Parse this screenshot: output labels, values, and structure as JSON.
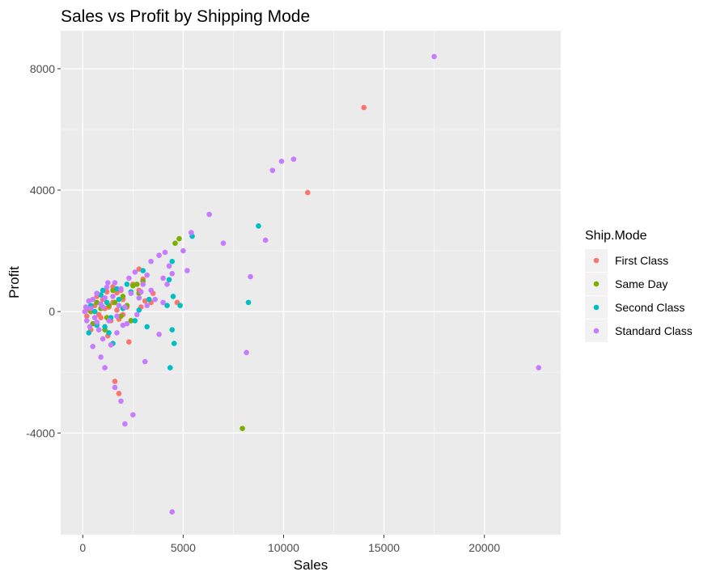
{
  "chart_data": {
    "type": "scatter",
    "title": "Sales vs Profit by Shipping Mode",
    "xlabel": "Sales",
    "ylabel": "Profit",
    "xlim": [
      -1100,
      23800
    ],
    "ylim": [
      -7350,
      9250
    ],
    "x_ticks": [
      0,
      5000,
      10000,
      15000,
      20000
    ],
    "y_ticks": [
      -4000,
      0,
      4000,
      8000
    ],
    "x_tick_labels": [
      "0",
      "5000",
      "10000",
      "15000",
      "20000"
    ],
    "y_tick_labels": [
      "-4000",
      "0",
      "4000",
      "8000"
    ],
    "grid": true,
    "background": "#ebebeb",
    "grid_color": "#ffffff",
    "legend": {
      "title": "Ship.Mode",
      "position": "right",
      "items": [
        {
          "label": "First Class",
          "color": "#F8766D"
        },
        {
          "label": "Same Day",
          "color": "#7CAE00"
        },
        {
          "label": "Second Class",
          "color": "#00BFC4"
        },
        {
          "label": "Standard Class",
          "color": "#C77CFF"
        }
      ]
    },
    "series": [
      {
        "name": "First Class",
        "color": "#F8766D",
        "points": [
          [
            14000,
            6720
          ],
          [
            11200,
            3920
          ],
          [
            3000,
            1070
          ],
          [
            2800,
            1400
          ],
          [
            3500,
            600
          ],
          [
            3400,
            300
          ],
          [
            4700,
            300
          ],
          [
            1700,
            620
          ],
          [
            1200,
            650
          ],
          [
            2000,
            400
          ],
          [
            2800,
            700
          ],
          [
            2500,
            900
          ],
          [
            1500,
            300
          ],
          [
            1300,
            150
          ],
          [
            1700,
            50
          ],
          [
            900,
            -200
          ],
          [
            700,
            -400
          ],
          [
            1800,
            -250
          ],
          [
            2300,
            -1000
          ],
          [
            1600,
            -2300
          ],
          [
            1800,
            -2700
          ],
          [
            400,
            -600
          ],
          [
            1100,
            100
          ],
          [
            600,
            200
          ],
          [
            2200,
            150
          ],
          [
            3100,
            350
          ],
          [
            800,
            -100
          ],
          [
            1400,
            -300
          ],
          [
            300,
            50
          ],
          [
            1000,
            400
          ],
          [
            1900,
            700
          ],
          [
            2900,
            150
          ],
          [
            2000,
            -100
          ],
          [
            700,
            500
          ],
          [
            1500,
            820
          ],
          [
            2400,
            -300
          ],
          [
            200,
            -150
          ],
          [
            1250,
            -800
          ]
        ]
      },
      {
        "name": "Same Day",
        "color": "#7CAE00",
        "points": [
          [
            4600,
            2250
          ],
          [
            4800,
            2400
          ],
          [
            7950,
            -3850
          ],
          [
            2700,
            900
          ],
          [
            2500,
            850
          ],
          [
            3000,
            1000
          ],
          [
            2400,
            -300
          ],
          [
            1600,
            300
          ],
          [
            1200,
            -200
          ],
          [
            900,
            100
          ],
          [
            2000,
            500
          ],
          [
            500,
            -400
          ],
          [
            1500,
            700
          ],
          [
            2200,
            200
          ],
          [
            1100,
            -600
          ],
          [
            700,
            300
          ],
          [
            1900,
            -150
          ],
          [
            2800,
            600
          ],
          [
            1300,
            200
          ],
          [
            400,
            0
          ]
        ]
      },
      {
        "name": "Second Class",
        "color": "#00BFC4",
        "points": [
          [
            8750,
            2820
          ],
          [
            5450,
            2480
          ],
          [
            8250,
            300
          ],
          [
            4450,
            1650
          ],
          [
            4300,
            1050
          ],
          [
            4350,
            -1850
          ],
          [
            4450,
            -600
          ],
          [
            4550,
            -1050
          ],
          [
            4200,
            200
          ],
          [
            4850,
            200
          ],
          [
            4500,
            500
          ],
          [
            3200,
            -500
          ],
          [
            3000,
            1350
          ],
          [
            2200,
            900
          ],
          [
            1500,
            -1050
          ],
          [
            1300,
            -700
          ],
          [
            2600,
            -300
          ],
          [
            1800,
            400
          ],
          [
            1000,
            700
          ],
          [
            700,
            -450
          ],
          [
            400,
            200
          ],
          [
            300,
            -700
          ],
          [
            2000,
            100
          ],
          [
            1700,
            750
          ],
          [
            1200,
            300
          ],
          [
            3300,
            400
          ],
          [
            2800,
            50
          ],
          [
            600,
            0
          ],
          [
            1400,
            -200
          ],
          [
            2400,
            650
          ],
          [
            900,
            550
          ],
          [
            1100,
            -500
          ]
        ]
      },
      {
        "name": "Standard Class",
        "color": "#C77CFF",
        "points": [
          [
            17500,
            8400
          ],
          [
            10500,
            5020
          ],
          [
            9900,
            4950
          ],
          [
            9450,
            4650
          ],
          [
            6300,
            3200
          ],
          [
            7000,
            2250
          ],
          [
            9100,
            2350
          ],
          [
            5400,
            2600
          ],
          [
            4100,
            1950
          ],
          [
            3800,
            1850
          ],
          [
            3400,
            1650
          ],
          [
            5000,
            2000
          ],
          [
            5200,
            1350
          ],
          [
            4300,
            1500
          ],
          [
            4450,
            1250
          ],
          [
            4000,
            1100
          ],
          [
            3200,
            1200
          ],
          [
            8350,
            1150
          ],
          [
            22700,
            -1850
          ],
          [
            8150,
            -1350
          ],
          [
            3800,
            -750
          ],
          [
            3100,
            -1650
          ],
          [
            2100,
            -3700
          ],
          [
            2500,
            -3400
          ],
          [
            1900,
            -2950
          ],
          [
            1600,
            -2500
          ],
          [
            1100,
            -1850
          ],
          [
            900,
            -1500
          ],
          [
            1400,
            -1100
          ],
          [
            500,
            -1150
          ],
          [
            4450,
            -6600
          ],
          [
            2200,
            -400
          ],
          [
            1000,
            -900
          ],
          [
            1700,
            -700
          ],
          [
            700,
            600
          ],
          [
            1200,
            800
          ],
          [
            2300,
            1100
          ],
          [
            2600,
            1300
          ],
          [
            3000,
            900
          ],
          [
            2800,
            450
          ],
          [
            3600,
            400
          ],
          [
            3400,
            700
          ],
          [
            4000,
            300
          ],
          [
            4200,
            900
          ],
          [
            1800,
            200
          ],
          [
            1500,
            500
          ],
          [
            1300,
            -300
          ],
          [
            900,
            250
          ],
          [
            600,
            -200
          ],
          [
            400,
            100
          ],
          [
            200,
            -300
          ],
          [
            100,
            0
          ],
          [
            300,
            350
          ],
          [
            800,
            -600
          ],
          [
            1100,
            450
          ],
          [
            2000,
            -450
          ],
          [
            2700,
            -100
          ],
          [
            3200,
            200
          ],
          [
            1600,
            950
          ],
          [
            1900,
            750
          ],
          [
            2400,
            600
          ],
          [
            2100,
            150
          ],
          [
            1000,
            150
          ],
          [
            700,
            -350
          ],
          [
            500,
            400
          ],
          [
            150,
            150
          ],
          [
            350,
            -500
          ],
          [
            1250,
            950
          ],
          [
            1700,
            -150
          ],
          [
            2900,
            650
          ]
        ]
      }
    ]
  }
}
